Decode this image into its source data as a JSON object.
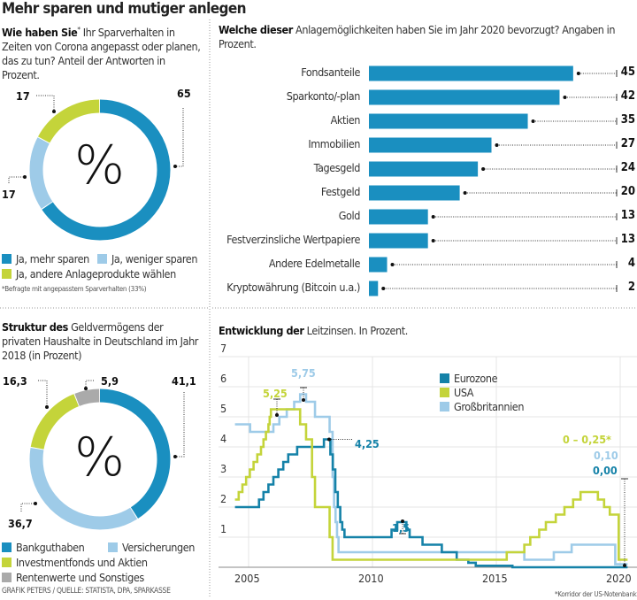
{
  "title": "Mehr sparen und mutiger anlegen",
  "colors": {
    "dark_blue": "#1a8fc0",
    "light_blue": "#9ecbe8",
    "green": "#c4d43a",
    "gray": "#aaaaaa",
    "eurozone_line": "#1582a8"
  },
  "survey": {
    "heading_bold": "Wie haben Sie",
    "heading_sup": "*",
    "heading_rest": " Ihr Sparverhalten in Zeiten von Corona angepasst oder planen, das zu tun? Anteil der Antworten in Prozent.",
    "center_symbol": "%",
    "footnote": "*Befragte mit angepasstem Sparverhalten (33%)",
    "chart_data": {
      "type": "pie",
      "segments": [
        {
          "label": "Ja, mehr sparen",
          "value": 65,
          "display": "65",
          "color": "#1a8fc0"
        },
        {
          "label": "Ja, weniger sparen",
          "value": 17,
          "display": "17",
          "color": "#9ecbe8"
        },
        {
          "label": "Ja, andere Anlageprodukte wählen",
          "value": 17,
          "display": "17",
          "color": "#c4d43a"
        }
      ]
    }
  },
  "assets": {
    "heading_bold": "Struktur des",
    "heading_rest": " Geldvermögens der privaten Haushalte in Deutschland im Jahr 2018 (in Prozent)",
    "center_symbol": "%",
    "source": "GRAFIK PETERS / QUELLE: STATISTA, DPA, SPARKASSE",
    "chart_data": {
      "type": "pie",
      "segments": [
        {
          "label": "Bankguthaben",
          "value": 41.1,
          "display": "41,1",
          "color": "#1a8fc0"
        },
        {
          "label": "Versicherungen",
          "value": 36.7,
          "display": "36,7",
          "color": "#9ecbe8"
        },
        {
          "label": "Investmentfonds und Aktien",
          "value": 16.3,
          "display": "16,3",
          "color": "#c4d43a"
        },
        {
          "label": "Rentenwerte und Sonstiges",
          "value": 5.9,
          "display": "5,9",
          "color": "#aaaaaa"
        }
      ]
    }
  },
  "preferences": {
    "heading_bold": "Welche dieser",
    "heading_rest": " Anlagemöglichkeiten haben Sie im Jahr 2020 bevorzugt? Angaben in Prozent.",
    "chart_data": {
      "type": "bar",
      "orientation": "horizontal",
      "categories": [
        "Fondsanteile",
        "Sparkonto/-plan",
        "Aktien",
        "Immobilien",
        "Tagesgeld",
        "Festgeld",
        "Gold",
        "Festverzinsliche Wertpapiere",
        "Andere Edelmetalle",
        "Kryptowährung (Bitcoin u.a.)"
      ],
      "values": [
        45,
        42,
        35,
        27,
        24,
        20,
        13,
        13,
        4,
        2
      ],
      "color": "#1a8fc0"
    }
  },
  "rates": {
    "heading_bold": "Entwicklung der",
    "heading_rest": " Leitzinsen. In Prozent.",
    "footnote": "*Korridor der US-Notenbank",
    "chart_data": {
      "type": "line",
      "step": true,
      "xlim": [
        2004.2,
        2020.4
      ],
      "ylim": [
        0,
        7
      ],
      "xticks": [
        "2005",
        "2010",
        "2015",
        "2020"
      ],
      "yticks": [
        "1",
        "2",
        "3",
        "4",
        "5",
        "6",
        "7"
      ],
      "grid": true,
      "legend": "top-right",
      "series": [
        {
          "name": "Eurozone",
          "color": "#1582a8",
          "points": [
            [
              2004.45,
              2
            ],
            [
              2005.42,
              2.25
            ],
            [
              2005.6,
              2.5
            ],
            [
              2005.8,
              2.75
            ],
            [
              2006.0,
              3
            ],
            [
              2006.2,
              3.25
            ],
            [
              2006.4,
              3.5
            ],
            [
              2006.6,
              3.75
            ],
            [
              2006.96,
              4
            ],
            [
              2008.04,
              4.25
            ],
            [
              2008.3,
              3.75
            ],
            [
              2008.4,
              3.25
            ],
            [
              2008.5,
              2.5
            ],
            [
              2008.6,
              2
            ],
            [
              2008.7,
              1.5
            ],
            [
              2008.78,
              1.25
            ],
            [
              2008.87,
              1
            ],
            [
              2010.77,
              1.25
            ],
            [
              2011.0,
              1.5
            ],
            [
              2011.37,
              1.25
            ],
            [
              2011.5,
              1
            ],
            [
              2012.02,
              0.75
            ],
            [
              2012.8,
              0.5
            ],
            [
              2013.4,
              0.25
            ],
            [
              2013.87,
              0.15
            ],
            [
              2014.17,
              0.05
            ],
            [
              2015.65,
              0
            ],
            [
              2020.3,
              0
            ]
          ]
        },
        {
          "name": "USA",
          "color": "#c4d43a",
          "points": [
            [
              2004.45,
              2.25
            ],
            [
              2004.6,
              2.5
            ],
            [
              2004.75,
              2.75
            ],
            [
              2004.9,
              3
            ],
            [
              2005.05,
              3.25
            ],
            [
              2005.2,
              3.5
            ],
            [
              2005.35,
              3.75
            ],
            [
              2005.5,
              4
            ],
            [
              2005.6,
              4.25
            ],
            [
              2005.7,
              4.5
            ],
            [
              2005.8,
              4.75
            ],
            [
              2005.85,
              5
            ],
            [
              2005.9,
              5.25
            ],
            [
              2007.08,
              4.75
            ],
            [
              2007.32,
              4.25
            ],
            [
              2007.56,
              3
            ],
            [
              2007.68,
              2
            ],
            [
              2008.27,
              1
            ],
            [
              2008.39,
              0.25
            ],
            [
              2015.42,
              0.5
            ],
            [
              2016.13,
              0.75
            ],
            [
              2016.37,
              1
            ],
            [
              2016.73,
              1.25
            ],
            [
              2017.0,
              1.5
            ],
            [
              2017.4,
              1.75
            ],
            [
              2017.75,
              2
            ],
            [
              2018.1,
              2.25
            ],
            [
              2018.4,
              2.5
            ],
            [
              2019.1,
              2.25
            ],
            [
              2019.35,
              2
            ],
            [
              2019.58,
              1.75
            ],
            [
              2019.94,
              0.25
            ],
            [
              2020.3,
              0.25
            ]
          ]
        },
        {
          "name": "Großbritannien",
          "color": "#9ecbe8",
          "points": [
            [
              2004.45,
              4.75
            ],
            [
              2005.06,
              4.5
            ],
            [
              2006.0,
              4.75
            ],
            [
              2006.24,
              5
            ],
            [
              2006.54,
              5.25
            ],
            [
              2006.84,
              5.5
            ],
            [
              2007.08,
              5.75
            ],
            [
              2007.32,
              5.5
            ],
            [
              2007.68,
              5
            ],
            [
              2008.27,
              4.5
            ],
            [
              2008.39,
              3
            ],
            [
              2008.45,
              2
            ],
            [
              2008.51,
              1.5
            ],
            [
              2008.57,
              1
            ],
            [
              2008.63,
              0.5
            ],
            [
              2016.13,
              0.25
            ],
            [
              2017.32,
              0.5
            ],
            [
              2018.04,
              0.75
            ],
            [
              2019.8,
              0.1
            ],
            [
              2020.3,
              0.1
            ]
          ]
        }
      ],
      "annotations": [
        {
          "text": "5,75",
          "color": "#9ecbe8"
        },
        {
          "text": "5,25",
          "color": "#c4d43a"
        },
        {
          "text": "4,25",
          "color": "#1582a8"
        },
        {
          "text": "1,5",
          "color": "#1582a8"
        },
        {
          "text": "0 – 0,25*",
          "color": "#c4d43a"
        },
        {
          "text": "0,10",
          "color": "#9ecbe8"
        },
        {
          "text": "0,00",
          "color": "#1582a8"
        }
      ]
    }
  }
}
